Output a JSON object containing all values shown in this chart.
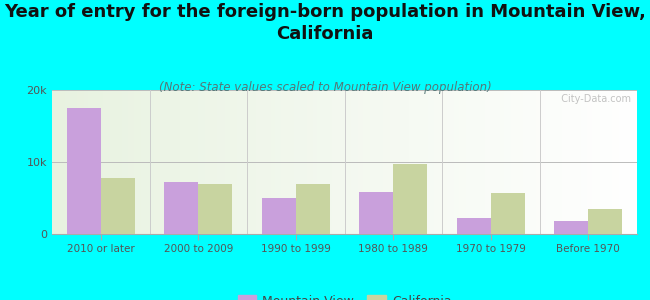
{
  "title": "Year of entry for the foreign-born population in Mountain View,\nCalifornia",
  "subtitle": "(Note: State values scaled to Mountain View population)",
  "categories": [
    "2010 or later",
    "2000 to 2009",
    "1990 to 1999",
    "1980 to 1989",
    "1970 to 1979",
    "Before 1970"
  ],
  "mountain_view": [
    17500,
    7200,
    5000,
    5800,
    2200,
    1800
  ],
  "california": [
    7800,
    6900,
    6900,
    9700,
    5700,
    3500
  ],
  "mv_color": "#c9a0dc",
  "ca_color": "#c8d4a0",
  "background_color": "#00ffff",
  "plot_bg_left": "#e8f0e0",
  "plot_bg_right": "#ffffff",
  "ylim": [
    0,
    20000
  ],
  "yticks": [
    0,
    10000,
    20000
  ],
  "ytick_labels": [
    "0",
    "10k",
    "20k"
  ],
  "watermark": "  City-Data.com",
  "title_fontsize": 13,
  "subtitle_fontsize": 8.5,
  "legend_fontsize": 9,
  "bar_width": 0.35
}
